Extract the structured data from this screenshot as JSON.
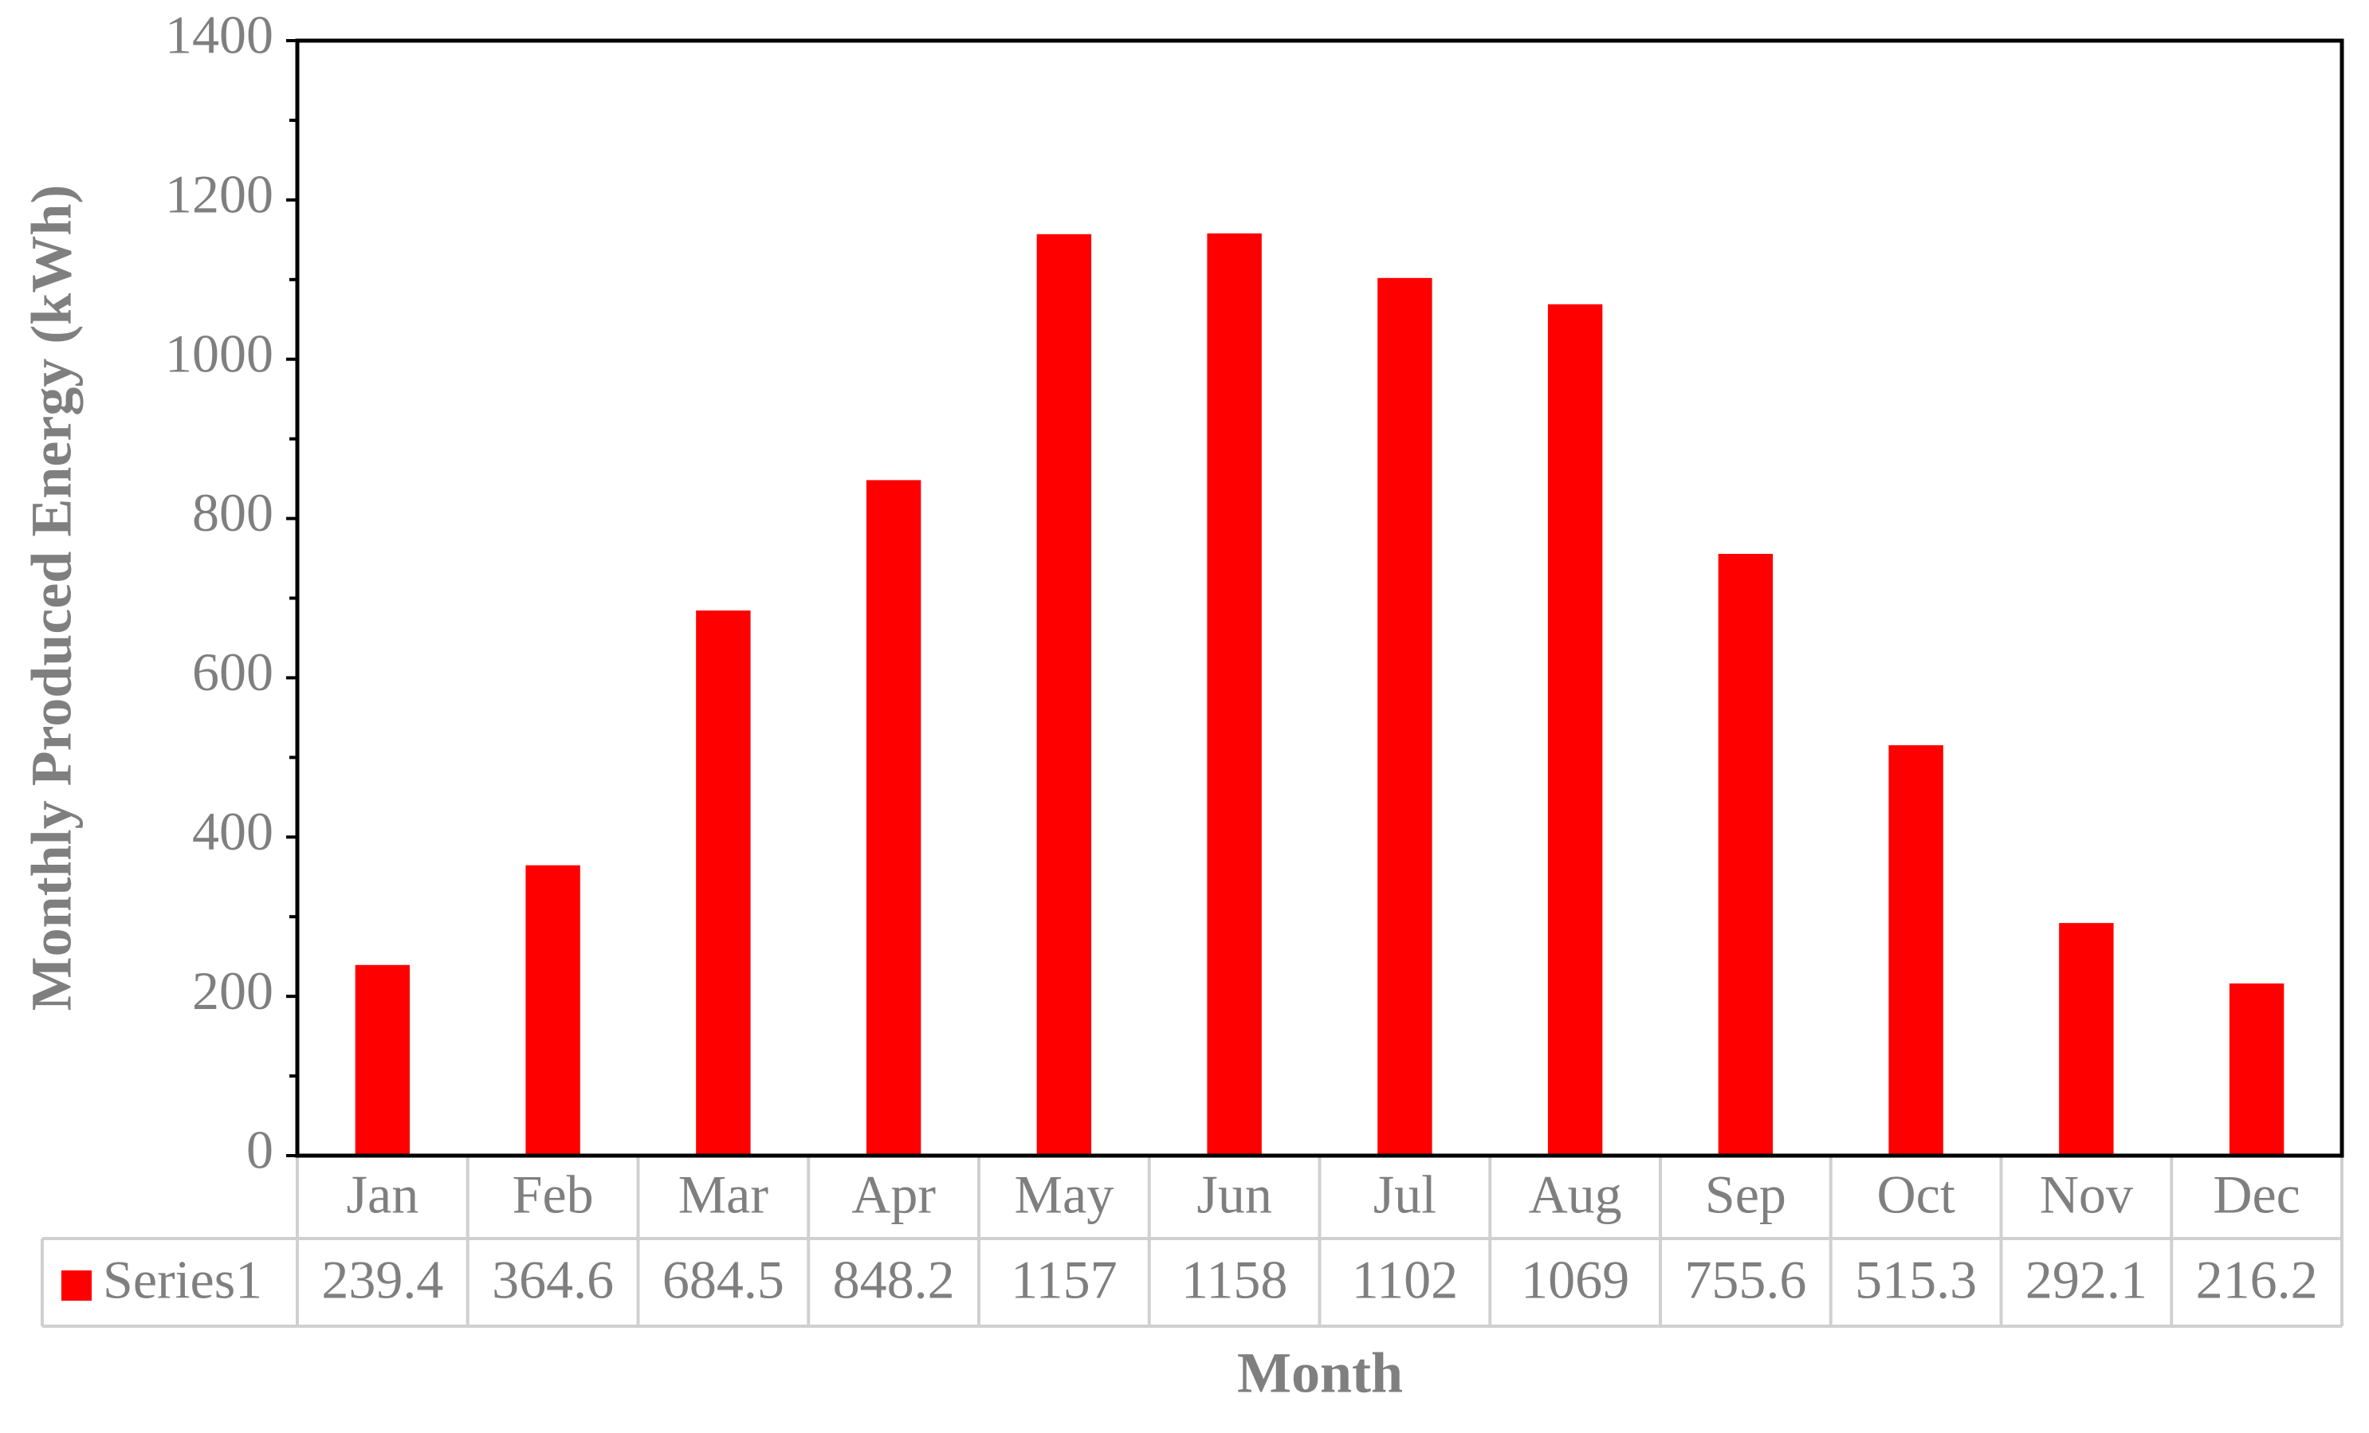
{
  "chart_data": {
    "type": "bar",
    "y_label": "Monthly Produced Energy (kWh)",
    "x_label": "Month",
    "categories": [
      "Jan",
      "Feb",
      "Mar",
      "Apr",
      "May",
      "Jun",
      "Jul",
      "Aug",
      "Sep",
      "Oct",
      "Nov",
      "Dec"
    ],
    "series": [
      {
        "name": "Series1",
        "color": "#ff0000",
        "values": [
          239.4,
          364.6,
          684.5,
          848.2,
          1157,
          1158,
          1102,
          1069,
          755.6,
          515.3,
          292.1,
          216.2
        ]
      }
    ],
    "ylim": [
      0,
      1400
    ],
    "yticks": [
      0,
      200,
      400,
      600,
      800,
      1000,
      1200,
      1400
    ],
    "yminorticks": [
      100,
      300,
      500,
      700,
      900,
      1100,
      1300
    ],
    "grid": false,
    "data_table": true
  }
}
